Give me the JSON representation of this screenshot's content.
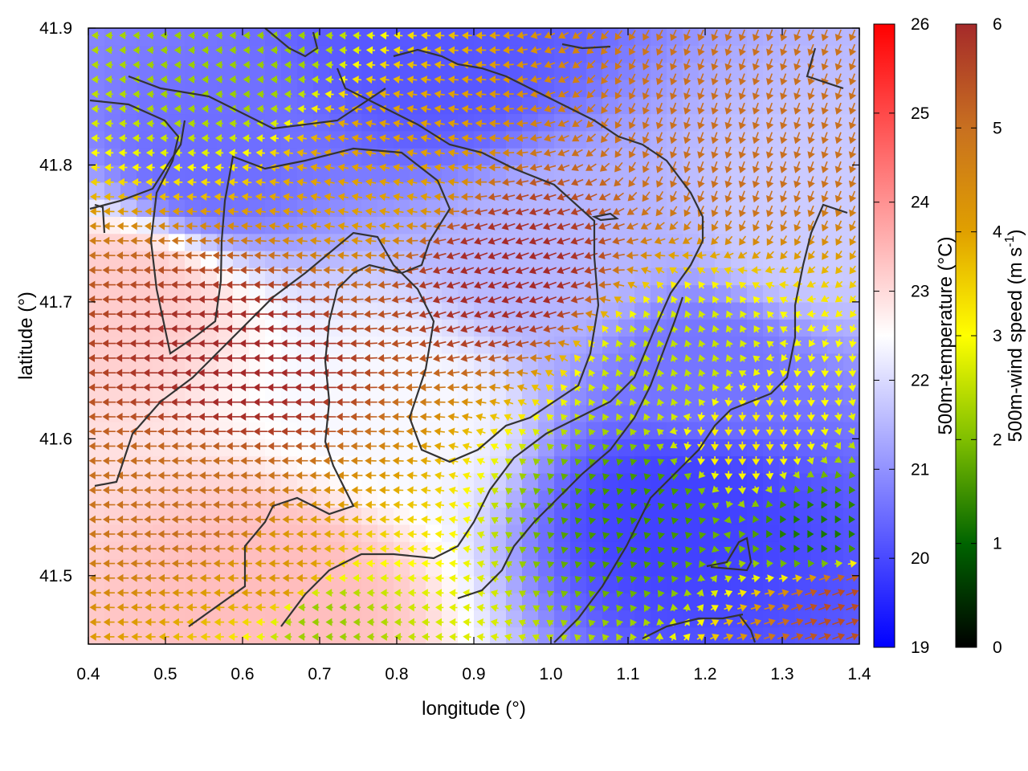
{
  "chart_data": {
    "type": "heatmap",
    "overlay": "wind-vectors",
    "xlabel": "longitude (°)",
    "ylabel": "latitude (°)",
    "xlim": [
      0.4,
      1.4
    ],
    "ylim": [
      41.45,
      41.9
    ],
    "x_ticks": [
      {
        "value": 0.4,
        "label": "0.4"
      },
      {
        "value": 0.5,
        "label": "0.5"
      },
      {
        "value": 0.6,
        "label": "0.6"
      },
      {
        "value": 0.7,
        "label": "0.7"
      },
      {
        "value": 0.8,
        "label": "0.8"
      },
      {
        "value": 0.9,
        "label": "0.9"
      },
      {
        "value": 1.0,
        "label": "1.0"
      },
      {
        "value": 1.1,
        "label": "1.1"
      },
      {
        "value": 1.2,
        "label": "1.2"
      },
      {
        "value": 1.3,
        "label": "1.3"
      },
      {
        "value": 1.4,
        "label": "1.4"
      }
    ],
    "y_ticks": [
      {
        "value": 41.5,
        "label": "41.5"
      },
      {
        "value": 41.6,
        "label": "41.6"
      },
      {
        "value": 41.7,
        "label": "41.7"
      },
      {
        "value": 41.8,
        "label": "41.8"
      },
      {
        "value": 41.9,
        "label": "41.9"
      }
    ],
    "colorbars": [
      {
        "label": "500m-temperature (°C)",
        "range": [
          19,
          26
        ],
        "ticks": [
          {
            "value": 19,
            "label": "19"
          },
          {
            "value": 20,
            "label": "20"
          },
          {
            "value": 21,
            "label": "21"
          },
          {
            "value": 22,
            "label": "22"
          },
          {
            "value": 23,
            "label": "23"
          },
          {
            "value": 24,
            "label": "24"
          },
          {
            "value": 25,
            "label": "25"
          },
          {
            "value": 26,
            "label": "26"
          }
        ],
        "colors": [
          "#0000ff",
          "#ffffff",
          "#ff0000"
        ]
      },
      {
        "label_main": "500m-wind speed (m s",
        "label_sup": "-1",
        "label_end": ")",
        "range": [
          0,
          6
        ],
        "ticks": [
          {
            "value": 0,
            "label": "0"
          },
          {
            "value": 1,
            "label": "1"
          },
          {
            "value": 2,
            "label": "2"
          },
          {
            "value": 3,
            "label": "3"
          },
          {
            "value": 4,
            "label": "4"
          },
          {
            "value": 5,
            "label": "5"
          },
          {
            "value": 6,
            "label": "6"
          }
        ],
        "colors": [
          "#000000",
          "#006400",
          "#7fbf00",
          "#ffff00",
          "#e0a000",
          "#c87020",
          "#a52a2a"
        ]
      }
    ],
    "temperature_field": [
      {
        "lon": 0.55,
        "lat": 41.8,
        "temp": 20.5
      },
      {
        "lon": 0.85,
        "lat": 41.88,
        "temp": 20.2
      },
      {
        "lon": 1.17,
        "lat": 41.55,
        "temp": 19.9
      },
      {
        "lon": 1.2,
        "lat": 41.65,
        "temp": 20.6
      },
      {
        "lon": 0.65,
        "lat": 41.49,
        "temp": 23.4
      },
      {
        "lon": 0.45,
        "lat": 41.71,
        "temp": 23.2
      },
      {
        "lon": 1.02,
        "lat": 41.73,
        "temp": 21.5
      },
      {
        "lon": 1.33,
        "lat": 41.75,
        "temp": 21.8
      },
      {
        "lon": 0.8,
        "lat": 41.62,
        "temp": 22.4
      }
    ],
    "wind_field": [
      {
        "lon": 0.6,
        "lat": 41.65,
        "speed": 6.0,
        "dir_deg": 180
      },
      {
        "lon": 0.95,
        "lat": 41.72,
        "speed": 6.0,
        "dir_deg": 200
      },
      {
        "lon": 0.55,
        "lat": 41.55,
        "speed": 5.0,
        "dir_deg": 180
      },
      {
        "lon": 0.65,
        "lat": 41.5,
        "speed": 4.2,
        "dir_deg": 180
      },
      {
        "lon": 0.7,
        "lat": 41.47,
        "speed": 2.2,
        "dir_deg": 180
      },
      {
        "lon": 1.12,
        "lat": 41.55,
        "speed": 1.5,
        "dir_deg": 135
      },
      {
        "lon": 1.15,
        "lat": 41.65,
        "speed": 2.5,
        "dir_deg": 110
      },
      {
        "lon": 1.25,
        "lat": 41.82,
        "speed": 5.0,
        "dir_deg": 250
      },
      {
        "lon": 1.25,
        "lat": 41.6,
        "speed": 3.2,
        "dir_deg": 270
      },
      {
        "lon": 1.35,
        "lat": 41.53,
        "speed": 1.2,
        "dir_deg": 0
      },
      {
        "lon": 1.38,
        "lat": 41.48,
        "speed": 5.5,
        "dir_deg": 20
      },
      {
        "lon": 0.78,
        "lat": 41.8,
        "speed": 4.0,
        "dir_deg": 170
      },
      {
        "lon": 0.6,
        "lat": 41.88,
        "speed": 2.2,
        "dir_deg": 180
      }
    ]
  }
}
